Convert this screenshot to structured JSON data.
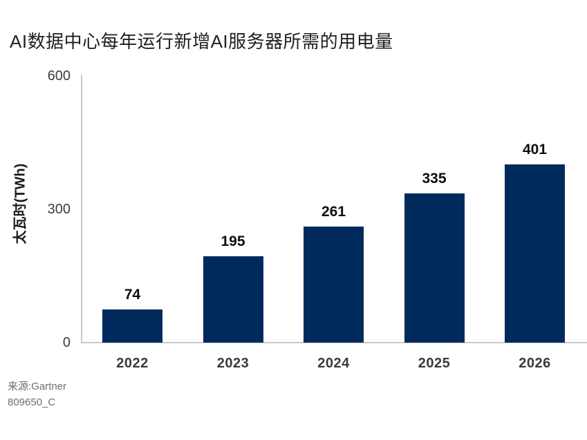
{
  "title": "AI数据中心每年运行新增AI服务器所需的用电量",
  "source": {
    "line1": "来源:Gartner",
    "line2": "809650_C"
  },
  "colors": {
    "bar": "#002a5c",
    "axis_line": "#c7c9ca",
    "title_text": "#1f1f1f",
    "tick_text": "#3d3d3d",
    "value_label_text": "#0d0d0d",
    "source_text": "#667077",
    "background": "#ffffff"
  },
  "chart_data": {
    "type": "bar",
    "title": "AI数据中心每年运行新增AI服务器所需的用电量",
    "categories": [
      "2022",
      "2023",
      "2024",
      "2025",
      "2026"
    ],
    "values": [
      74,
      195,
      261,
      335,
      401
    ],
    "xlabel": "",
    "ylabel": "太瓦时(TWh)",
    "ylim": [
      0,
      600
    ],
    "yticks": [
      0,
      300,
      600
    ],
    "grid": false,
    "legend_position": "none",
    "bar_color": "#002a5c",
    "value_labels_shown": true,
    "source": "来源:Gartner",
    "figure_id": "809650_C"
  }
}
